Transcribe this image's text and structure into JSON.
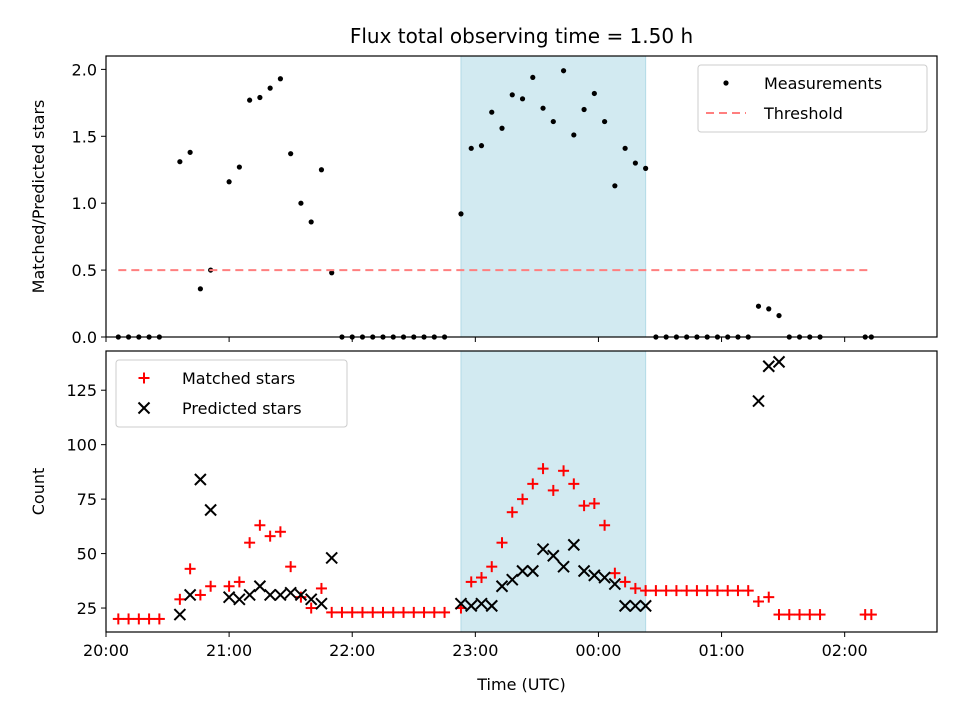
{
  "chart_data": [
    {
      "type": "scatter",
      "title": "Flux total observing time = 1.50 h",
      "xlabel": "",
      "ylabel": "Matched/Predicted stars",
      "xlim": [
        "20:00",
        "02:45"
      ],
      "ylim": [
        0,
        2.1
      ],
      "yticks": [
        "0.0",
        "0.5",
        "1.0",
        "1.5",
        "2.0"
      ],
      "highlight_span": [
        "22:53",
        "00:23"
      ],
      "highlight_color": "#add8e6",
      "legend_position": "upper right",
      "series": [
        {
          "name": "Measurements",
          "marker": "dot",
          "color": "#000000",
          "points": [
            [
              "20:06",
              0
            ],
            [
              "20:11",
              0
            ],
            [
              "20:16",
              0
            ],
            [
              "20:21",
              0
            ],
            [
              "20:26",
              0
            ],
            [
              "20:36",
              1.31
            ],
            [
              "20:41",
              1.38
            ],
            [
              "20:46",
              0.36
            ],
            [
              "20:51",
              0.5
            ],
            [
              "21:00",
              1.16
            ],
            [
              "21:05",
              1.27
            ],
            [
              "21:10",
              1.77
            ],
            [
              "21:15",
              1.79
            ],
            [
              "21:20",
              1.86
            ],
            [
              "21:25",
              1.93
            ],
            [
              "21:30",
              1.37
            ],
            [
              "21:35",
              1.0
            ],
            [
              "21:40",
              0.86
            ],
            [
              "21:45",
              1.25
            ],
            [
              "21:50",
              0.48
            ],
            [
              "21:55",
              0
            ],
            [
              "22:00",
              0
            ],
            [
              "22:05",
              0
            ],
            [
              "22:10",
              0
            ],
            [
              "22:15",
              0
            ],
            [
              "22:20",
              0
            ],
            [
              "22:25",
              0
            ],
            [
              "22:30",
              0
            ],
            [
              "22:35",
              0
            ],
            [
              "22:40",
              0
            ],
            [
              "22:45",
              0
            ],
            [
              "22:53",
              0.92
            ],
            [
              "22:58",
              1.41
            ],
            [
              "23:03",
              1.43
            ],
            [
              "23:08",
              1.68
            ],
            [
              "23:13",
              1.56
            ],
            [
              "23:18",
              1.81
            ],
            [
              "23:23",
              1.78
            ],
            [
              "23:28",
              1.94
            ],
            [
              "23:33",
              1.71
            ],
            [
              "23:38",
              1.61
            ],
            [
              "23:43",
              1.99
            ],
            [
              "23:48",
              1.51
            ],
            [
              "23:53",
              1.7
            ],
            [
              "23:58",
              1.82
            ],
            [
              "00:03",
              1.61
            ],
            [
              "00:08",
              1.13
            ],
            [
              "00:13",
              1.41
            ],
            [
              "00:18",
              1.3
            ],
            [
              "00:23",
              1.26
            ],
            [
              "00:28",
              0
            ],
            [
              "00:33",
              0
            ],
            [
              "00:38",
              0
            ],
            [
              "00:43",
              0
            ],
            [
              "00:48",
              0
            ],
            [
              "00:53",
              0
            ],
            [
              "00:58",
              0
            ],
            [
              "01:03",
              0
            ],
            [
              "01:08",
              0
            ],
            [
              "01:13",
              0
            ],
            [
              "01:18",
              0.23
            ],
            [
              "01:23",
              0.21
            ],
            [
              "01:28",
              0.16
            ],
            [
              "01:33",
              0
            ],
            [
              "01:38",
              0
            ],
            [
              "01:43",
              0
            ],
            [
              "01:48",
              0
            ],
            [
              "02:10",
              0
            ],
            [
              "02:13",
              0
            ]
          ]
        },
        {
          "name": "Threshold",
          "marker": "dashed-line",
          "color": "#ff7f7f",
          "points": [
            [
              "20:06",
              0.5
            ],
            [
              "02:13",
              0.5
            ]
          ]
        }
      ]
    },
    {
      "type": "scatter",
      "title": "",
      "xlabel": "Time (UTC)",
      "ylabel": "Count",
      "xlim": [
        "20:00",
        "02:45"
      ],
      "ylim": [
        14,
        143
      ],
      "yticks": [
        "25",
        "50",
        "75",
        "100",
        "125"
      ],
      "xticks": [
        "20:00",
        "21:00",
        "22:00",
        "23:00",
        "00:00",
        "01:00",
        "02:00"
      ],
      "highlight_span": [
        "22:53",
        "00:23"
      ],
      "highlight_color": "#add8e6",
      "legend_position": "upper left",
      "series": [
        {
          "name": "Matched stars",
          "marker": "plus",
          "color": "#ff0000",
          "points": [
            [
              "20:06",
              20
            ],
            [
              "20:11",
              20
            ],
            [
              "20:16",
              20
            ],
            [
              "20:21",
              20
            ],
            [
              "20:26",
              20
            ],
            [
              "20:36",
              29
            ],
            [
              "20:41",
              43
            ],
            [
              "20:46",
              31
            ],
            [
              "20:51",
              35
            ],
            [
              "21:00",
              35
            ],
            [
              "21:05",
              37
            ],
            [
              "21:10",
              55
            ],
            [
              "21:15",
              63
            ],
            [
              "21:20",
              58
            ],
            [
              "21:25",
              60
            ],
            [
              "21:30",
              44
            ],
            [
              "21:35",
              30
            ],
            [
              "21:40",
              25
            ],
            [
              "21:45",
              34
            ],
            [
              "21:50",
              23
            ],
            [
              "21:55",
              23
            ],
            [
              "22:00",
              23
            ],
            [
              "22:05",
              23
            ],
            [
              "22:10",
              23
            ],
            [
              "22:15",
              23
            ],
            [
              "22:20",
              23
            ],
            [
              "22:25",
              23
            ],
            [
              "22:30",
              23
            ],
            [
              "22:35",
              23
            ],
            [
              "22:40",
              23
            ],
            [
              "22:45",
              23
            ],
            [
              "22:53",
              25
            ],
            [
              "22:58",
              37
            ],
            [
              "23:03",
              39
            ],
            [
              "23:08",
              44
            ],
            [
              "23:13",
              55
            ],
            [
              "23:18",
              69
            ],
            [
              "23:23",
              75
            ],
            [
              "23:28",
              82
            ],
            [
              "23:33",
              89
            ],
            [
              "23:38",
              79
            ],
            [
              "23:43",
              88
            ],
            [
              "23:48",
              82
            ],
            [
              "23:53",
              72
            ],
            [
              "23:58",
              73
            ],
            [
              "00:03",
              63
            ],
            [
              "00:08",
              41
            ],
            [
              "00:13",
              37
            ],
            [
              "00:18",
              34
            ],
            [
              "00:23",
              33
            ],
            [
              "00:28",
              33
            ],
            [
              "00:33",
              33
            ],
            [
              "00:38",
              33
            ],
            [
              "00:43",
              33
            ],
            [
              "00:48",
              33
            ],
            [
              "00:53",
              33
            ],
            [
              "00:58",
              33
            ],
            [
              "01:03",
              33
            ],
            [
              "01:08",
              33
            ],
            [
              "01:13",
              33
            ],
            [
              "01:18",
              28
            ],
            [
              "01:23",
              30
            ],
            [
              "01:28",
              22
            ],
            [
              "01:33",
              22
            ],
            [
              "01:38",
              22
            ],
            [
              "01:43",
              22
            ],
            [
              "01:48",
              22
            ],
            [
              "02:10",
              22
            ],
            [
              "02:13",
              22
            ]
          ]
        },
        {
          "name": "Predicted stars",
          "marker": "x",
          "color": "#000000",
          "points": [
            [
              "20:36",
              22
            ],
            [
              "20:41",
              31
            ],
            [
              "20:46",
              84
            ],
            [
              "20:51",
              70
            ],
            [
              "21:00",
              30
            ],
            [
              "21:05",
              29
            ],
            [
              "21:10",
              31
            ],
            [
              "21:15",
              35
            ],
            [
              "21:20",
              31
            ],
            [
              "21:25",
              31
            ],
            [
              "21:30",
              32
            ],
            [
              "21:35",
              31
            ],
            [
              "21:40",
              29
            ],
            [
              "21:45",
              27
            ],
            [
              "21:50",
              48
            ],
            [
              "22:53",
              27
            ],
            [
              "22:58",
              26
            ],
            [
              "23:03",
              27
            ],
            [
              "23:08",
              26
            ],
            [
              "23:13",
              35
            ],
            [
              "23:18",
              38
            ],
            [
              "23:23",
              42
            ],
            [
              "23:28",
              42
            ],
            [
              "23:33",
              52
            ],
            [
              "23:38",
              49
            ],
            [
              "23:43",
              44
            ],
            [
              "23:48",
              54
            ],
            [
              "23:53",
              42
            ],
            [
              "23:58",
              40
            ],
            [
              "00:03",
              39
            ],
            [
              "00:08",
              36
            ],
            [
              "00:13",
              26
            ],
            [
              "00:18",
              26
            ],
            [
              "00:23",
              26
            ],
            [
              "01:18",
              120
            ],
            [
              "01:23",
              136
            ],
            [
              "01:28",
              138
            ]
          ]
        }
      ]
    }
  ]
}
